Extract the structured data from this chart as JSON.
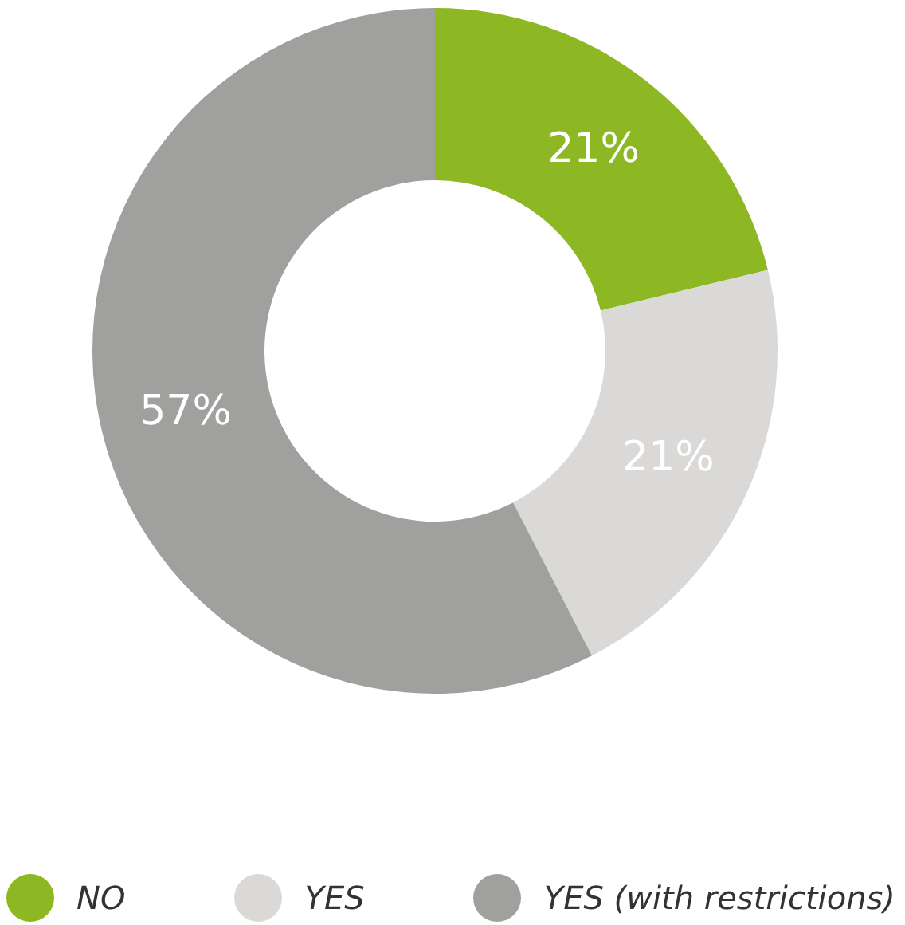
{
  "chart_data": {
    "type": "donut",
    "categories": [
      "NO",
      "YES",
      "YES (with restrictions)"
    ],
    "values": [
      21,
      21,
      57
    ],
    "colors": [
      "#8db824",
      "#dad9d7",
      "#a0a09f"
    ],
    "value_labels": [
      "21%",
      "21%",
      "57%"
    ],
    "legend": "bottom"
  }
}
